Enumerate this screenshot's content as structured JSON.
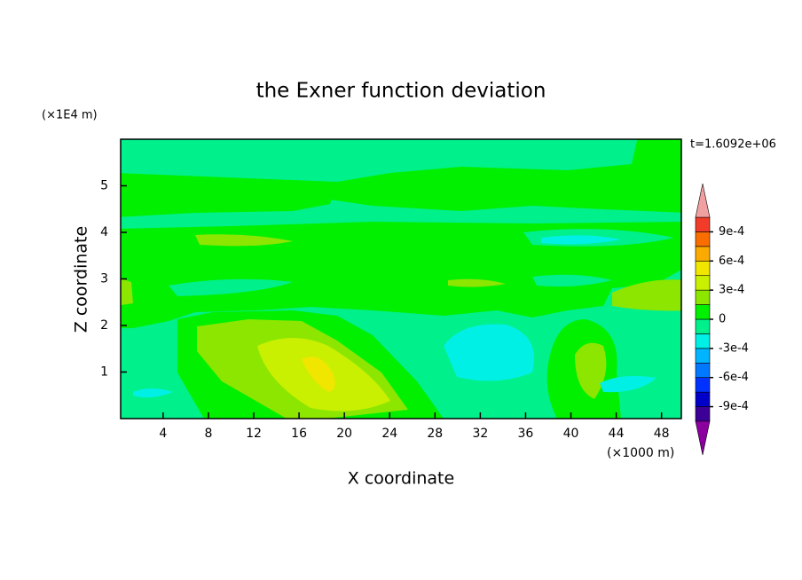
{
  "chart_data": {
    "type": "contour",
    "title": "the Exner function deviation",
    "xlabel": "X coordinate",
    "ylabel": "Z coordinate",
    "xunit": "(×1000 m)",
    "yunit": "(×1E4 m)",
    "annotation": "t=1.6092e+06",
    "xlim": [
      0.25,
      49.75
    ],
    "ylim": [
      0,
      6
    ],
    "xticks": [
      4,
      8,
      12,
      16,
      20,
      24,
      28,
      32,
      36,
      40,
      44,
      48
    ],
    "yticks": [
      1,
      2,
      3,
      4,
      5
    ],
    "colorbar": {
      "levels": [
        -0.00105,
        -0.0009,
        -0.00075,
        -0.0006,
        -0.00045,
        -0.0003,
        -0.00015,
        0,
        0.00015,
        0.0003,
        0.00045,
        0.0006,
        0.00075,
        0.0009,
        0.00105
      ],
      "colors": [
        "#3c0096",
        "#0000c8",
        "#0032ff",
        "#0078ff",
        "#00b4ff",
        "#00f0e6",
        "#00f08c",
        "#00f000",
        "#8ce600",
        "#c8f000",
        "#f0e600",
        "#faaa00",
        "#fa6e00",
        "#f03c28"
      ],
      "under_color": "#8c00a0",
      "over_color": "#f0a0a0",
      "ticks": [
        {
          "value": 0.0009,
          "label": "9e-4"
        },
        {
          "value": 0.0006,
          "label": "6e-4"
        },
        {
          "value": 0.0003,
          "label": "3e-4"
        },
        0,
        {
          "value": -0.0003,
          "label": "-3e-4"
        },
        {
          "value": -0.0006,
          "label": "-6e-4"
        },
        {
          "value": -0.0009,
          "label": "-9e-4"
        }
      ]
    }
  }
}
